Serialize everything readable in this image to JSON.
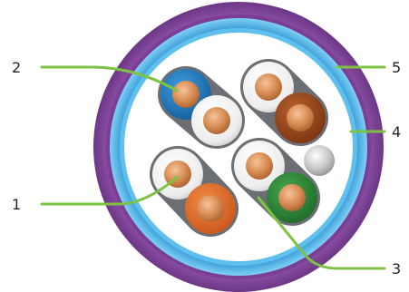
{
  "diagram": {
    "callouts": [
      {
        "id": "1",
        "label": "1"
      },
      {
        "id": "2",
        "label": "2"
      },
      {
        "id": "3",
        "label": "3"
      },
      {
        "id": "4",
        "label": "4"
      },
      {
        "id": "5",
        "label": "5"
      }
    ],
    "colors": {
      "jacket": "#8a4fa3",
      "jacket_dark": "#6c3685",
      "shield": "#3aa6df",
      "leader_line": "#7dc242",
      "copper": "#d9925c",
      "pair_blue": "#1f7fc4",
      "pair_brown": "#9b4a1d",
      "pair_orange": "#e06a26",
      "pair_green": "#2e8b3a",
      "insulation_white": "#f4f4f4",
      "pair_wrap": "#6b6f73",
      "drain_wire": "#bdbdbd"
    }
  }
}
